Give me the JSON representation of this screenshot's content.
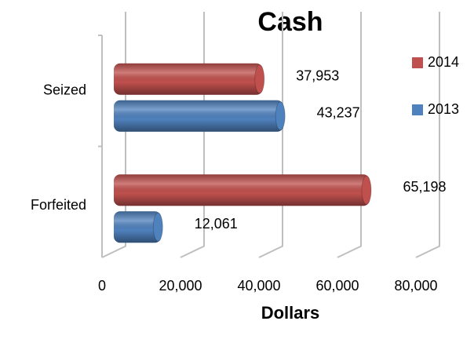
{
  "chart_data": {
    "type": "bar",
    "orientation": "horizontal",
    "title": "Cash",
    "x_label": "Dollars",
    "categories": [
      "Seized",
      "Forfeited"
    ],
    "series": [
      {
        "name": "2014",
        "color": "#c0504d",
        "values": [
          37953,
          65198
        ],
        "value_labels": [
          "37,953",
          "65,198"
        ]
      },
      {
        "name": "2013",
        "color": "#4f81bd",
        "values": [
          43237,
          12061
        ],
        "value_labels": [
          "43,237",
          "12,061"
        ]
      }
    ],
    "xlim": [
      0,
      80000
    ],
    "xticks": [
      0,
      {
        "value": 20000,
        "label": "20,000"
      },
      {
        "value": 40000,
        "label": "40,000"
      },
      {
        "value": 60000,
        "label": "60,000"
      },
      {
        "value": 80000,
        "label": "80,000"
      }
    ],
    "grid": true,
    "legend": "right"
  }
}
